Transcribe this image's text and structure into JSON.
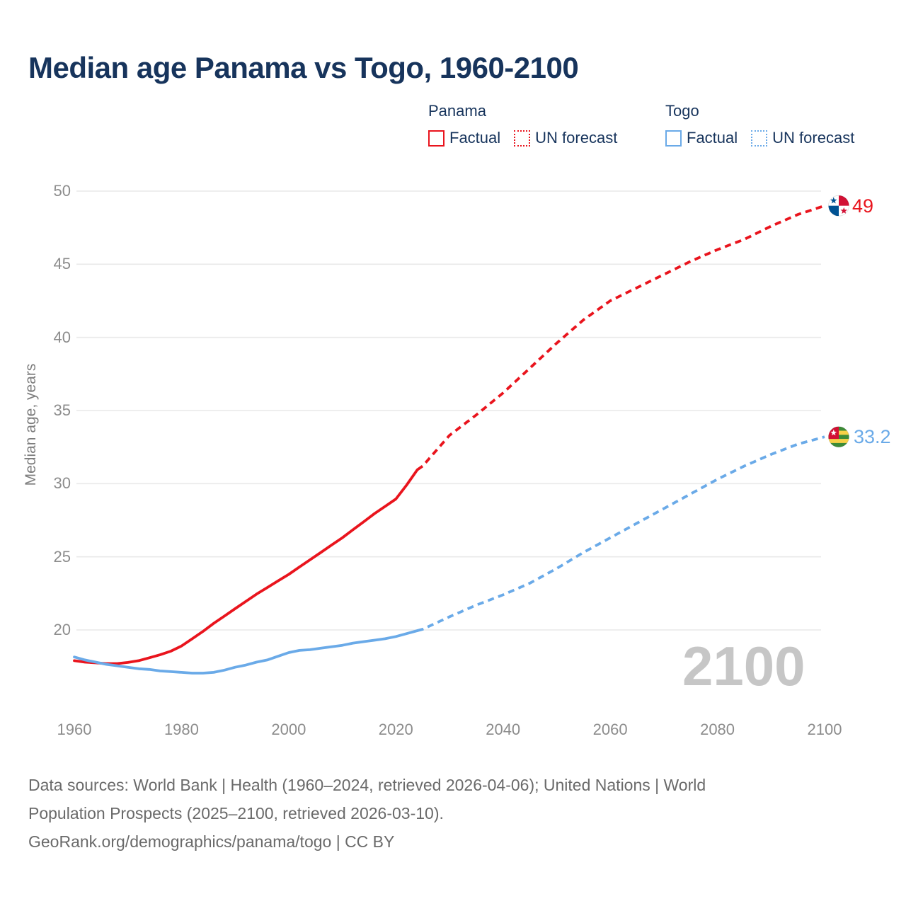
{
  "title": "Median age Panama vs Togo, 1960-2100",
  "legend": {
    "groups": [
      {
        "name": "Panama",
        "color": "#e9141d",
        "items": [
          {
            "label": "Factual",
            "style": "solid"
          },
          {
            "label": "UN forecast",
            "style": "dotted"
          }
        ]
      },
      {
        "name": "Togo",
        "color": "#6aaae8",
        "items": [
          {
            "label": "Factual",
            "style": "solid"
          },
          {
            "label": "UN forecast",
            "style": "dotted"
          }
        ]
      }
    ]
  },
  "watermark": "2100",
  "end_labels": {
    "panama": "49",
    "togo": "33.2"
  },
  "footer": {
    "lines": [
      "Data sources: World Bank | Health (1960–2024, retrieved 2026-04-06); United Nations | World",
      "Population Prospects (2025–2100, retrieved 2026-03-10).",
      "GeoRank.org/demographics/panama/togo | CC BY"
    ]
  },
  "chart_data": {
    "type": "line",
    "title": "Median age Panama vs Togo, 1960-2100",
    "xlabel": "",
    "ylabel": "Median age, years",
    "x_ticks": [
      1960,
      1980,
      2000,
      2020,
      2040,
      2060,
      2080,
      2100
    ],
    "y_ticks": [
      20,
      25,
      30,
      35,
      40,
      45,
      50
    ],
    "x_range": [
      1960,
      2100
    ],
    "y_range": [
      16.5,
      51
    ],
    "grid": "horizontal-only",
    "legend_position": "top-right",
    "colors": {
      "grid": "#e9e9e9",
      "panama": "#e9141d",
      "togo": "#6aaae8"
    },
    "series": [
      {
        "name": "Panama Factual",
        "color": "#e9141d",
        "dash": "solid",
        "points": [
          [
            1960,
            17.9
          ],
          [
            1962,
            17.8
          ],
          [
            1964,
            17.75
          ],
          [
            1966,
            17.7
          ],
          [
            1968,
            17.7
          ],
          [
            1970,
            17.78
          ],
          [
            1972,
            17.9
          ],
          [
            1974,
            18.1
          ],
          [
            1976,
            18.3
          ],
          [
            1978,
            18.55
          ],
          [
            1980,
            18.9
          ],
          [
            1982,
            19.4
          ],
          [
            1984,
            19.9
          ],
          [
            1986,
            20.45
          ],
          [
            1988,
            20.95
          ],
          [
            1990,
            21.45
          ],
          [
            1992,
            21.95
          ],
          [
            1994,
            22.45
          ],
          [
            1996,
            22.9
          ],
          [
            1998,
            23.35
          ],
          [
            2000,
            23.8
          ],
          [
            2002,
            24.3
          ],
          [
            2004,
            24.8
          ],
          [
            2006,
            25.3
          ],
          [
            2008,
            25.8
          ],
          [
            2010,
            26.3
          ],
          [
            2012,
            26.85
          ],
          [
            2014,
            27.4
          ],
          [
            2016,
            27.95
          ],
          [
            2018,
            28.45
          ],
          [
            2020,
            28.95
          ],
          [
            2022,
            29.9
          ],
          [
            2024,
            30.95
          ]
        ]
      },
      {
        "name": "Panama UN forecast",
        "color": "#e9141d",
        "dash": "dotted",
        "points": [
          [
            2024,
            30.95
          ],
          [
            2025,
            31.2
          ],
          [
            2030,
            33.3
          ],
          [
            2035,
            34.7
          ],
          [
            2040,
            36.2
          ],
          [
            2045,
            37.9
          ],
          [
            2050,
            39.6
          ],
          [
            2055,
            41.2
          ],
          [
            2060,
            42.5
          ],
          [
            2065,
            43.4
          ],
          [
            2070,
            44.3
          ],
          [
            2075,
            45.2
          ],
          [
            2080,
            46.0
          ],
          [
            2085,
            46.7
          ],
          [
            2090,
            47.6
          ],
          [
            2095,
            48.4
          ],
          [
            2100,
            49.0
          ]
        ]
      },
      {
        "name": "Togo Factual",
        "color": "#6aaae8",
        "dash": "solid",
        "points": [
          [
            1960,
            18.15
          ],
          [
            1962,
            17.95
          ],
          [
            1964,
            17.8
          ],
          [
            1966,
            17.65
          ],
          [
            1968,
            17.55
          ],
          [
            1970,
            17.45
          ],
          [
            1972,
            17.35
          ],
          [
            1974,
            17.3
          ],
          [
            1976,
            17.2
          ],
          [
            1978,
            17.15
          ],
          [
            1980,
            17.1
          ],
          [
            1982,
            17.05
          ],
          [
            1984,
            17.05
          ],
          [
            1986,
            17.1
          ],
          [
            1988,
            17.25
          ],
          [
            1990,
            17.45
          ],
          [
            1992,
            17.6
          ],
          [
            1994,
            17.8
          ],
          [
            1996,
            17.95
          ],
          [
            1998,
            18.2
          ],
          [
            2000,
            18.45
          ],
          [
            2002,
            18.6
          ],
          [
            2004,
            18.65
          ],
          [
            2006,
            18.75
          ],
          [
            2008,
            18.85
          ],
          [
            2010,
            18.95
          ],
          [
            2012,
            19.1
          ],
          [
            2014,
            19.2
          ],
          [
            2016,
            19.3
          ],
          [
            2018,
            19.4
          ],
          [
            2020,
            19.55
          ],
          [
            2022,
            19.75
          ],
          [
            2024,
            19.95
          ]
        ]
      },
      {
        "name": "Togo UN forecast",
        "color": "#6aaae8",
        "dash": "dotted",
        "points": [
          [
            2024,
            19.95
          ],
          [
            2025,
            20.05
          ],
          [
            2030,
            20.9
          ],
          [
            2035,
            21.7
          ],
          [
            2040,
            22.4
          ],
          [
            2045,
            23.2
          ],
          [
            2050,
            24.2
          ],
          [
            2055,
            25.3
          ],
          [
            2060,
            26.3
          ],
          [
            2065,
            27.3
          ],
          [
            2070,
            28.3
          ],
          [
            2075,
            29.3
          ],
          [
            2080,
            30.3
          ],
          [
            2085,
            31.2
          ],
          [
            2090,
            32.0
          ],
          [
            2095,
            32.7
          ],
          [
            2100,
            33.2
          ]
        ]
      }
    ]
  }
}
